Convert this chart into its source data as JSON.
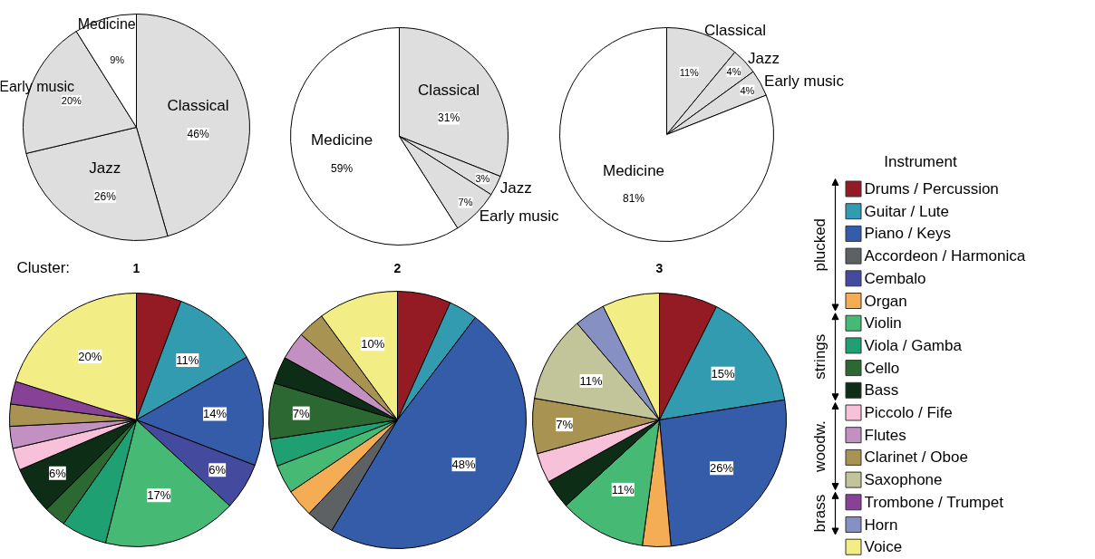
{
  "chart_data": [
    {
      "type": "pie",
      "categories": [
        "Classical",
        "Jazz",
        "Early music",
        "Medicine"
      ],
      "values": [
        46,
        26,
        20,
        9
      ],
      "colors": [
        "#dedede",
        "#dedede",
        "#dedede",
        "#ffffff"
      ],
      "value_labels": [
        "46%",
        "26%",
        "20%",
        "9%"
      ]
    },
    {
      "type": "pie",
      "categories": [
        "Classical",
        "Jazz",
        "Early music",
        "Medicine"
      ],
      "values": [
        31,
        3,
        7,
        59
      ],
      "colors": [
        "#dedede",
        "#dedede",
        "#dedede",
        "#ffffff"
      ],
      "value_labels": [
        "31%",
        "3%",
        "7%",
        "59%"
      ]
    },
    {
      "type": "pie",
      "categories": [
        "Classical",
        "Jazz",
        "Early music",
        "Medicine"
      ],
      "values": [
        11,
        4,
        4,
        81
      ],
      "colors": [
        "#dedede",
        "#dedede",
        "#dedede",
        "#ffffff"
      ],
      "value_labels": [
        "11%",
        "4%",
        "4%",
        "81%"
      ]
    },
    {
      "type": "pie",
      "title": "1",
      "legend": "right",
      "legend_title": "Instrument",
      "annotations": [
        "Cluster:",
        "plucked",
        "strings",
        "woodw.",
        "brass"
      ],
      "categories": [
        "Drums / Percussion",
        "Guitar / Lute",
        "Piano / Keys",
        "Accordeon / Harmonica",
        "Cembalo",
        "Organ",
        "Violin",
        "Viola / Gamba",
        "Cello",
        "Bass",
        "Piccolo / Fife",
        "Flutes",
        "Clarinet / Oboe",
        "Saxophone",
        "Trombone / Trumpet",
        "Horn",
        "Voice"
      ],
      "values": [
        5.7,
        11,
        14,
        null,
        6,
        null,
        17,
        5.8,
        2.8,
        6,
        2.8,
        2.8,
        2.8,
        null,
        2.9,
        null,
        20
      ],
      "colors": [
        "#941b23",
        "#329bb0",
        "#355ca8",
        "#5d6164",
        "#444a9e",
        "#f5ad55",
        "#46b975",
        "#1fa073",
        "#2c6832",
        "#0d2d17",
        "#f6c1d9",
        "#c291c2",
        "#a89352",
        "#c2c49a",
        "#874196",
        "#8690c2",
        "#f2ed84"
      ],
      "value_labels": [
        null,
        "11%",
        "14%",
        null,
        "6%",
        null,
        "17%",
        null,
        null,
        "6%",
        null,
        null,
        null,
        null,
        null,
        null,
        "20%"
      ]
    },
    {
      "type": "pie",
      "title": "2",
      "categories": [
        null,
        null,
        null,
        null,
        null,
        null,
        null,
        null,
        null,
        null,
        null,
        null,
        null,
        null,
        null,
        null,
        null
      ],
      "values": [
        6.7,
        3.6,
        48,
        3.5,
        null,
        3.5,
        3.6,
        3.4,
        7,
        3.4,
        null,
        3.5,
        3.4,
        null,
        null,
        null,
        10
      ],
      "colors": [
        "#941b23",
        "#329bb0",
        "#355ca8",
        "#5d6164",
        "#444a9e",
        "#f5ad55",
        "#46b975",
        "#1fa073",
        "#2c6832",
        "#0d2d17",
        "#f6c1d9",
        "#c291c2",
        "#a89352",
        "#c2c49a",
        "#874196",
        "#8690c2",
        "#f2ed84"
      ],
      "value_labels": [
        null,
        null,
        "48%",
        null,
        null,
        null,
        null,
        null,
        "7%",
        null,
        null,
        null,
        null,
        null,
        null,
        null,
        "10%"
      ]
    },
    {
      "type": "pie",
      "title": "3",
      "categories": [
        null,
        null,
        null,
        null,
        null,
        null,
        null,
        null,
        null,
        null,
        null,
        null,
        null,
        null,
        null,
        null,
        null
      ],
      "values": [
        7.4,
        15,
        26,
        null,
        null,
        3.6,
        11,
        null,
        null,
        3.7,
        3.8,
        null,
        7,
        11,
        null,
        3.9,
        7.3
      ],
      "colors": [
        "#941b23",
        "#329bb0",
        "#355ca8",
        "#5d6164",
        "#444a9e",
        "#f5ad55",
        "#46b975",
        "#1fa073",
        "#2c6832",
        "#0d2d17",
        "#f6c1d9",
        "#c291c2",
        "#a89352",
        "#c2c49a",
        "#874196",
        "#8690c2",
        "#f2ed84"
      ],
      "value_labels": [
        null,
        "15%",
        "26%",
        null,
        null,
        null,
        "11%",
        null,
        null,
        null,
        null,
        null,
        "7%",
        "11%",
        null,
        null,
        null
      ]
    }
  ]
}
